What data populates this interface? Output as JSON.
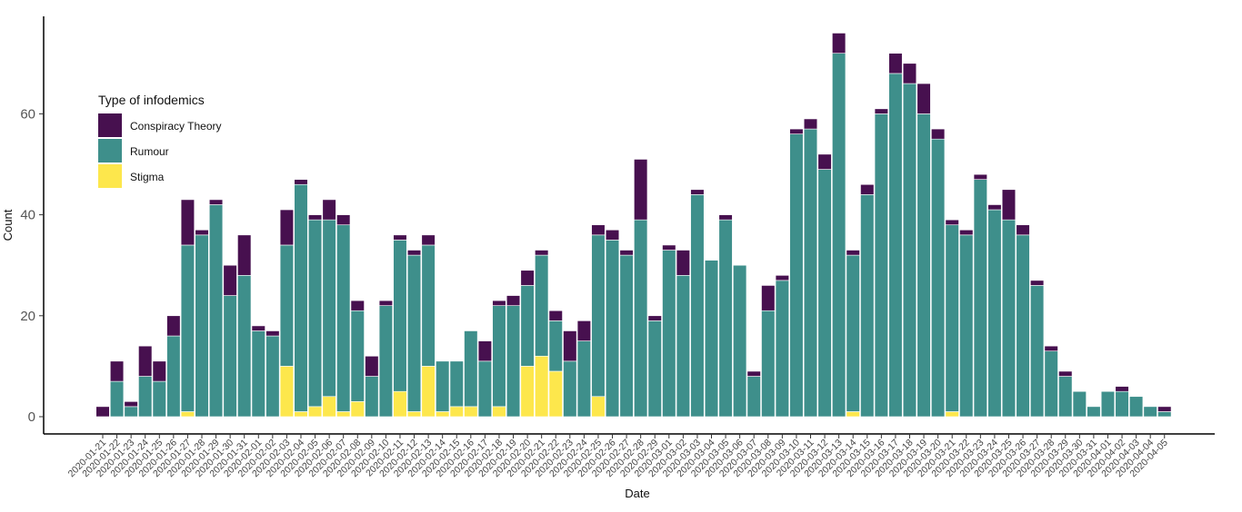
{
  "chart_data": {
    "type": "bar",
    "stacked": true,
    "xlabel": "Date",
    "ylabel": "Count",
    "ylim": [
      0,
      76
    ],
    "yticks": [
      0,
      20,
      40,
      60
    ],
    "grid": false,
    "legend": {
      "title": "Type of infodemics",
      "placement": "left"
    },
    "categories": [
      "2020-01-21",
      "2020-01-22",
      "2020-01-23",
      "2020-01-24",
      "2020-01-25",
      "2020-01-26",
      "2020-01-27",
      "2020-01-28",
      "2020-01-29",
      "2020-01-30",
      "2020-01-31",
      "2020-02-01",
      "2020-02-02",
      "2020-02-03",
      "2020-02-04",
      "2020-02-05",
      "2020-02-06",
      "2020-02-07",
      "2020-02-08",
      "2020-02-09",
      "2020-02-10",
      "2020-02-11",
      "2020-02-12",
      "2020-02-13",
      "2020-02-14",
      "2020-02-15",
      "2020-02-16",
      "2020-02-17",
      "2020-02-18",
      "2020-02-19",
      "2020-02-20",
      "2020-02-21",
      "2020-02-22",
      "2020-02-23",
      "2020-02-24",
      "2020-02-25",
      "2020-02-26",
      "2020-02-27",
      "2020-02-28",
      "2020-02-29",
      "2020-03-01",
      "2020-03-02",
      "2020-03-03",
      "2020-03-04",
      "2020-03-05",
      "2020-03-06",
      "2020-03-07",
      "2020-03-08",
      "2020-03-09",
      "2020-03-10",
      "2020-03-11",
      "2020-03-12",
      "2020-03-13",
      "2020-03-14",
      "2020-03-15",
      "2020-03-16",
      "2020-03-17",
      "2020-03-18",
      "2020-03-19",
      "2020-03-20",
      "2020-03-21",
      "2020-03-22",
      "2020-03-23",
      "2020-03-24",
      "2020-03-25",
      "2020-03-26",
      "2020-03-27",
      "2020-03-28",
      "2020-03-29",
      "2020-03-30",
      "2020-03-31",
      "2020-04-01",
      "2020-04-02",
      "2020-04-03",
      "2020-04-04",
      "2020-04-05"
    ],
    "series": [
      {
        "name": "Stigma",
        "color": "#FDE74C",
        "values": [
          0,
          0,
          0,
          0,
          0,
          0,
          1,
          0,
          0,
          0,
          0,
          0,
          0,
          10,
          1,
          2,
          4,
          1,
          3,
          0,
          0,
          5,
          1,
          10,
          1,
          2,
          2,
          0,
          2,
          0,
          10,
          12,
          9,
          0,
          0,
          4,
          0,
          0,
          0,
          0,
          0,
          0,
          0,
          0,
          0,
          0,
          0,
          0,
          0,
          0,
          0,
          0,
          0,
          1,
          0,
          0,
          0,
          0,
          0,
          0,
          1,
          0,
          0,
          0,
          0,
          0,
          0,
          0,
          0,
          0,
          0,
          0,
          0,
          0,
          0,
          0
        ]
      },
      {
        "name": "Rumour",
        "color": "#3E8F8B",
        "values": [
          0,
          7,
          2,
          8,
          7,
          16,
          33,
          36,
          42,
          24,
          28,
          17,
          16,
          24,
          45,
          37,
          35,
          37,
          18,
          8,
          22,
          30,
          31,
          24,
          10,
          9,
          15,
          11,
          20,
          22,
          16,
          20,
          10,
          11,
          15,
          32,
          35,
          32,
          39,
          19,
          33,
          28,
          44,
          31,
          39,
          30,
          8,
          21,
          27,
          56,
          57,
          49,
          72,
          31,
          44,
          60,
          68,
          66,
          60,
          55,
          37,
          36,
          47,
          41,
          39,
          36,
          26,
          13,
          8,
          5,
          2,
          5,
          5,
          4,
          2,
          1
        ]
      },
      {
        "name": "Conspiracy Theory",
        "color": "#47104F",
        "values": [
          2,
          4,
          1,
          6,
          4,
          4,
          9,
          1,
          1,
          6,
          8,
          1,
          1,
          7,
          1,
          1,
          4,
          2,
          2,
          4,
          1,
          1,
          1,
          2,
          0,
          0,
          0,
          4,
          1,
          2,
          3,
          1,
          2,
          6,
          4,
          2,
          2,
          1,
          12,
          1,
          1,
          5,
          1,
          0,
          1,
          0,
          1,
          5,
          1,
          1,
          2,
          3,
          4,
          1,
          2,
          1,
          4,
          4,
          6,
          2,
          1,
          1,
          1,
          1,
          6,
          2,
          1,
          1,
          1,
          0,
          0,
          0,
          1,
          0,
          0,
          1
        ]
      }
    ]
  }
}
